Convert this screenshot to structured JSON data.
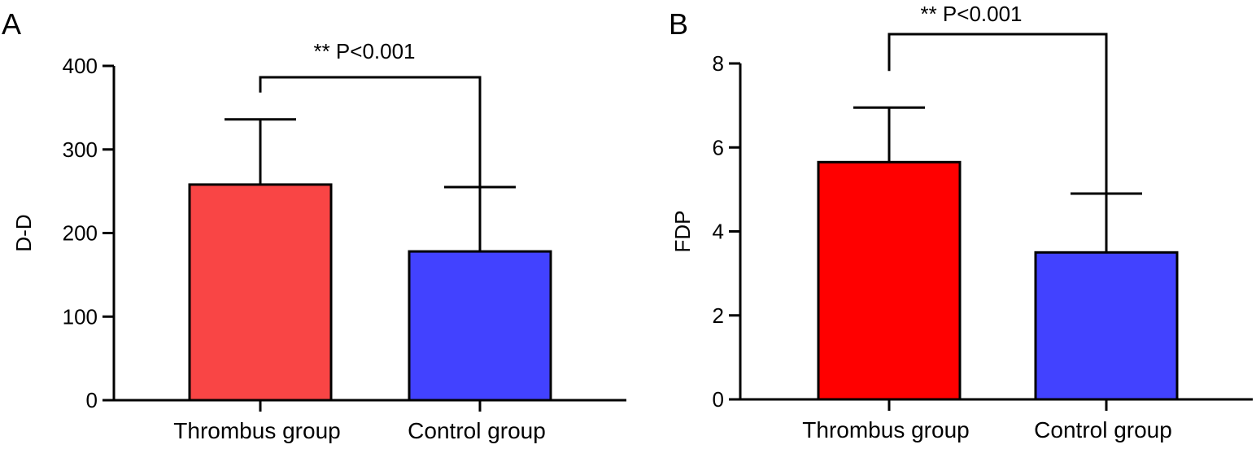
{
  "chart_data": [
    {
      "type": "bar",
      "panel": "A",
      "ylabel": "D-D",
      "xlabel": "",
      "ylim": [
        0,
        400
      ],
      "yticks": [
        0,
        100,
        200,
        300,
        400
      ],
      "categories": [
        "Thrombus group",
        "Control group"
      ],
      "values": [
        258,
        178
      ],
      "error_upper": [
        336,
        255
      ],
      "colors": [
        "#f94545",
        "#4242ff"
      ],
      "significance": {
        "label": "** P<0.001",
        "between": [
          0,
          1
        ]
      }
    },
    {
      "type": "bar",
      "panel": "B",
      "ylabel": "FDP",
      "xlabel": "",
      "ylim": [
        0,
        8
      ],
      "yticks": [
        0,
        2,
        4,
        6,
        8
      ],
      "categories": [
        "Thrombus group",
        "Control group"
      ],
      "values": [
        5.65,
        3.5
      ],
      "error_upper": [
        6.95,
        4.9
      ],
      "colors": [
        "#ff0000",
        "#4242ff"
      ],
      "significance": {
        "label": "** P<0.001",
        "between": [
          0,
          1
        ]
      }
    }
  ]
}
